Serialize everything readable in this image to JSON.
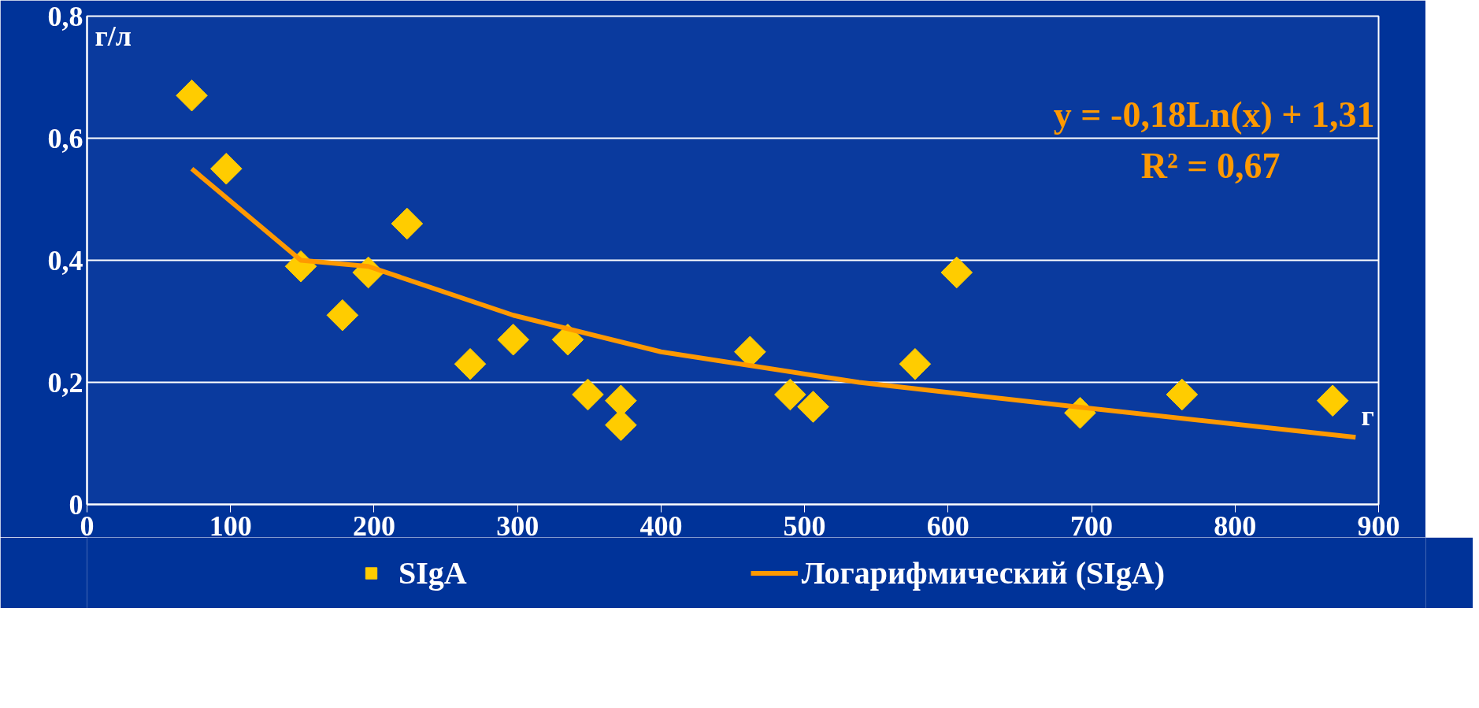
{
  "chart_data": {
    "type": "scatter",
    "xlabel": "г",
    "ylabel": "г/л",
    "xlim": [
      0,
      900
    ],
    "xticks": [
      0,
      100,
      200,
      300,
      400,
      500,
      600,
      700,
      800,
      900
    ],
    "ylim": [
      0,
      0.8
    ],
    "yticks": [
      {
        "value": 0,
        "label": "0"
      },
      {
        "value": 0.2,
        "label": "0,2"
      },
      {
        "value": 0.4,
        "label": "0,4"
      },
      {
        "value": 0.6,
        "label": "0,6"
      },
      {
        "value": 0.8,
        "label": "0,8"
      }
    ],
    "grid": "y",
    "legend": "bottom",
    "annotations": [
      "y = -0,18Ln(x) + 1,31",
      "R² = 0,67"
    ],
    "series": [
      {
        "name": "SIgA",
        "marker": "diamond",
        "color": "#ffcc00",
        "x": [
          73,
          97,
          149,
          178,
          196,
          223,
          267,
          297,
          335,
          349,
          372,
          372,
          462,
          490,
          506,
          577,
          606,
          692,
          763,
          868
        ],
        "values": [
          0.67,
          0.55,
          0.39,
          0.31,
          0.38,
          0.46,
          0.23,
          0.27,
          0.27,
          0.18,
          0.17,
          0.13,
          0.25,
          0.18,
          0.16,
          0.23,
          0.38,
          0.15,
          0.18,
          0.17
        ]
      },
      {
        "name": "Логарифмический (SIgA)",
        "type": "line",
        "color": "#ff9900",
        "x": [
          73,
          149,
          196,
          297,
          400,
          538,
          689,
          884
        ],
        "values": [
          0.55,
          0.4,
          0.39,
          0.31,
          0.25,
          0.2,
          0.16,
          0.11
        ]
      }
    ]
  }
}
